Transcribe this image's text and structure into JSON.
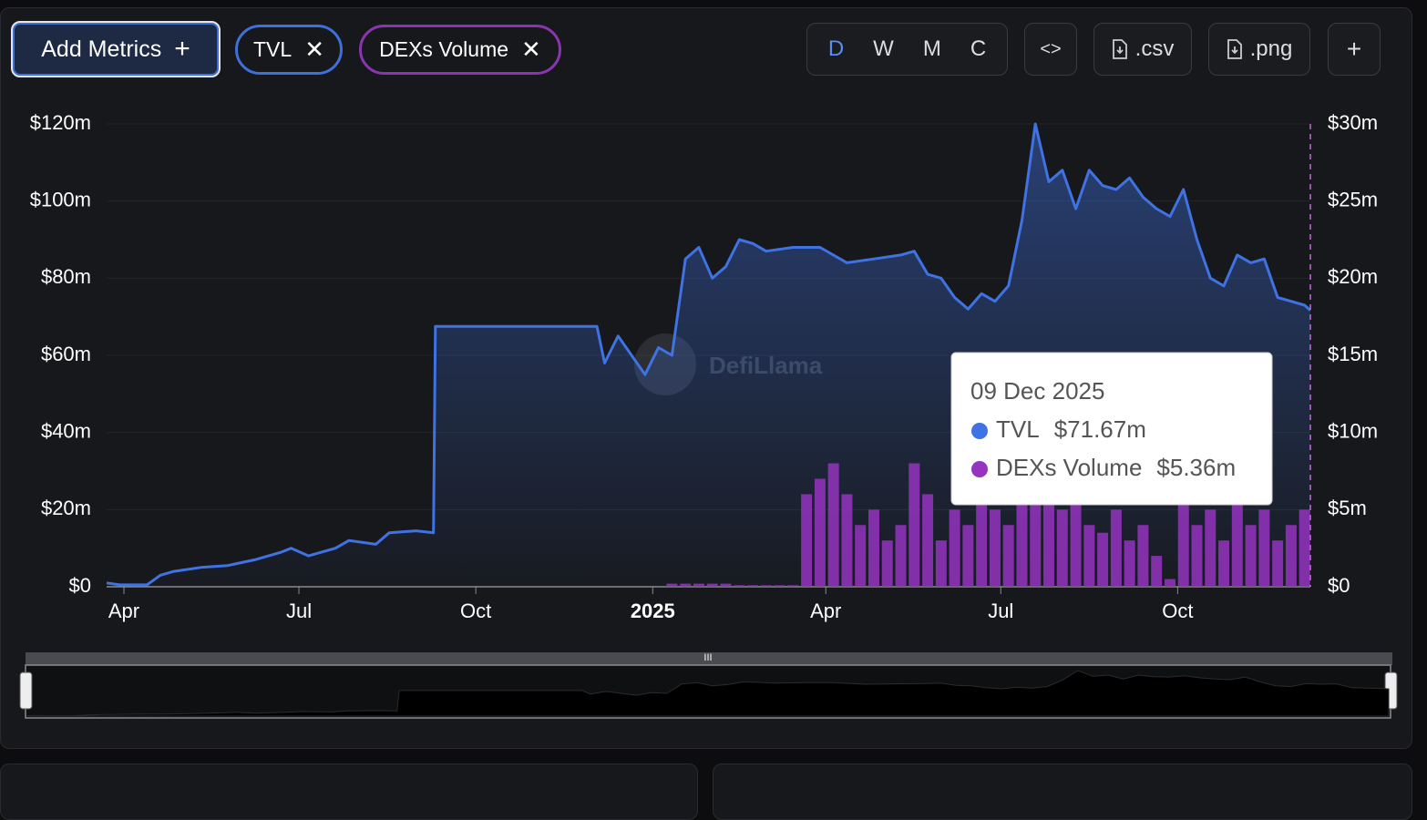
{
  "toolbar": {
    "add_metrics": "Add Metrics",
    "chips": [
      "TVL",
      "DEXs Volume"
    ],
    "periods": [
      "D",
      "W",
      "M",
      "C"
    ],
    "exports": [
      ".csv",
      ".png"
    ]
  },
  "chart_data": {
    "type": "combo",
    "watermark": "DefiLlama",
    "xlim": [
      "2024-03-23",
      "2025-12-09"
    ],
    "xticks": [
      {
        "value": "2024-04-01",
        "label": "Apr"
      },
      {
        "value": "2024-07-01",
        "label": "Jul"
      },
      {
        "value": "2024-10-01",
        "label": "Oct"
      },
      {
        "value": "2025-01-01",
        "label": "2025"
      },
      {
        "value": "2025-04-01",
        "label": "Apr"
      },
      {
        "value": "2025-07-01",
        "label": "Jul"
      },
      {
        "value": "2025-10-01",
        "label": "Oct"
      }
    ],
    "ylim": [
      0,
      120
    ],
    "yticks": [
      {
        "value": 0,
        "label": "$0"
      },
      {
        "value": 20,
        "label": "$20m"
      },
      {
        "value": 40,
        "label": "$40m"
      },
      {
        "value": 60,
        "label": "$60m"
      },
      {
        "value": 80,
        "label": "$80m"
      },
      {
        "value": 100,
        "label": "$100m"
      },
      {
        "value": 120,
        "label": "$120m"
      }
    ],
    "y2lim": [
      0,
      30
    ],
    "y2ticks": [
      {
        "value": 0,
        "label": "$0"
      },
      {
        "value": 5,
        "label": "$5m"
      },
      {
        "value": 10,
        "label": "$10m"
      },
      {
        "value": 15,
        "label": "$15m"
      },
      {
        "value": 20,
        "label": "$20m"
      },
      {
        "value": 25,
        "label": "$25m"
      },
      {
        "value": 30,
        "label": "$30m"
      }
    ],
    "grid": true,
    "series": [
      {
        "name": "TVL",
        "type": "line",
        "color": "#3f72e2",
        "x": [
          "2024-03-23",
          "2024-03-30",
          "2024-04-13",
          "2024-04-20",
          "2024-04-27",
          "2024-05-11",
          "2024-05-25",
          "2024-06-08",
          "2024-06-22",
          "2024-06-27",
          "2024-07-06",
          "2024-07-20",
          "2024-07-27",
          "2024-08-10",
          "2024-08-17",
          "2024-08-31",
          "2024-09-09",
          "2024-09-10",
          "2024-12-03",
          "2024-12-07",
          "2024-12-14",
          "2024-12-21",
          "2024-12-28",
          "2025-01-04",
          "2025-01-11",
          "2025-01-18",
          "2025-01-25",
          "2025-02-01",
          "2025-02-08",
          "2025-02-15",
          "2025-02-22",
          "2025-03-01",
          "2025-03-15",
          "2025-03-29",
          "2025-04-12",
          "2025-04-26",
          "2025-05-10",
          "2025-05-17",
          "2025-05-24",
          "2025-05-31",
          "2025-06-07",
          "2025-06-14",
          "2025-06-21",
          "2025-06-28",
          "2025-07-05",
          "2025-07-12",
          "2025-07-19",
          "2025-07-26",
          "2025-08-02",
          "2025-08-09",
          "2025-08-16",
          "2025-08-23",
          "2025-08-30",
          "2025-09-06",
          "2025-09-13",
          "2025-09-20",
          "2025-09-27",
          "2025-10-04",
          "2025-10-11",
          "2025-10-18",
          "2025-10-25",
          "2025-11-01",
          "2025-11-08",
          "2025-11-15",
          "2025-11-22",
          "2025-11-29",
          "2025-12-06",
          "2025-12-09"
        ],
        "values": [
          1,
          0.5,
          0.5,
          3,
          4,
          5,
          5.5,
          7,
          9,
          10,
          8,
          10,
          12,
          11,
          14,
          14.5,
          14,
          67.5,
          67.5,
          58,
          65,
          60,
          55,
          62,
          60,
          85,
          88,
          80,
          83,
          90,
          89,
          87,
          88,
          88,
          84,
          85,
          86,
          87,
          81,
          80,
          75,
          72,
          76,
          74,
          78,
          95,
          120,
          105,
          108,
          98,
          108,
          104,
          103,
          106,
          101,
          98,
          96,
          103,
          90,
          80,
          78,
          86,
          84,
          85,
          75,
          74,
          73,
          71.67
        ]
      },
      {
        "name": "DEXs Volume",
        "type": "bar",
        "axis": "y2",
        "color": "#9434c0",
        "x": [
          "2025-01-11",
          "2025-01-18",
          "2025-01-25",
          "2025-02-01",
          "2025-02-08",
          "2025-02-15",
          "2025-02-22",
          "2025-03-01",
          "2025-03-08",
          "2025-03-15",
          "2025-03-22",
          "2025-03-29",
          "2025-04-05",
          "2025-04-12",
          "2025-04-19",
          "2025-04-26",
          "2025-05-03",
          "2025-05-10",
          "2025-05-17",
          "2025-05-24",
          "2025-05-31",
          "2025-06-07",
          "2025-06-14",
          "2025-06-21",
          "2025-06-28",
          "2025-07-05",
          "2025-07-12",
          "2025-07-19",
          "2025-07-26",
          "2025-08-02",
          "2025-08-09",
          "2025-08-16",
          "2025-08-23",
          "2025-08-30",
          "2025-09-06",
          "2025-09-13",
          "2025-09-20",
          "2025-09-27",
          "2025-10-04",
          "2025-10-11",
          "2025-10-18",
          "2025-10-25",
          "2025-11-01",
          "2025-11-08",
          "2025-11-15",
          "2025-11-22",
          "2025-11-29",
          "2025-12-06"
        ],
        "values": [
          0.2,
          0.2,
          0.2,
          0.2,
          0.2,
          0.1,
          0.1,
          0.1,
          0.1,
          0.1,
          6,
          7,
          8,
          6,
          4,
          5,
          3,
          4,
          8,
          6,
          3,
          5,
          4,
          6,
          5,
          4,
          6,
          9,
          8,
          5,
          7,
          4,
          3.5,
          5,
          3,
          4,
          2,
          0.5,
          6,
          4,
          5,
          3,
          7,
          4,
          5,
          3,
          4,
          5
        ]
      }
    ],
    "tooltip": {
      "date": "09 Dec 2025",
      "values": [
        {
          "value": 71.67,
          "label": "$71.67m"
        },
        {
          "value": 5.36,
          "label": "$5.36m"
        }
      ]
    }
  }
}
